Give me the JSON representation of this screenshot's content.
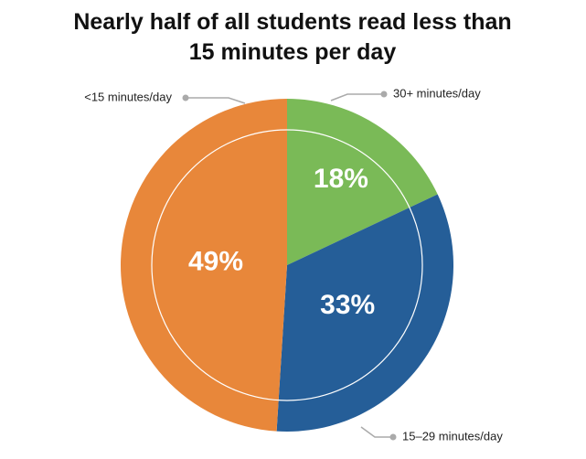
{
  "chart_data": {
    "type": "pie",
    "title": "Nearly half of all students read less than 15 minutes per day",
    "categories": [
      "30+ minutes/day",
      "15–29 minutes/day",
      "<15 minutes/day"
    ],
    "values": [
      18,
      33,
      49
    ],
    "value_labels": [
      "18%",
      "33%",
      "49%"
    ],
    "colors": [
      "#7aba57",
      "#255e98",
      "#e8873a"
    ]
  }
}
